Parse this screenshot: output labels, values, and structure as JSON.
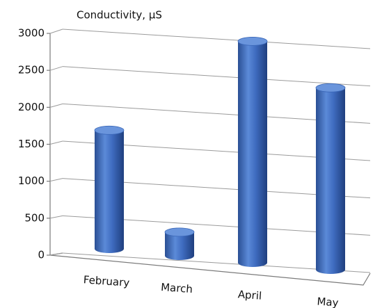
{
  "chart_data": {
    "type": "bar",
    "title": "Conductivity, µS",
    "categories": [
      "February",
      "March",
      "April",
      "May"
    ],
    "values": [
      1500,
      300,
      2800,
      2300
    ],
    "color": "#3a67b8",
    "ylim": [
      0,
      3000
    ],
    "yticks": [
      0,
      500,
      1000,
      1500,
      2000,
      2500,
      3000
    ],
    "grid": true
  }
}
